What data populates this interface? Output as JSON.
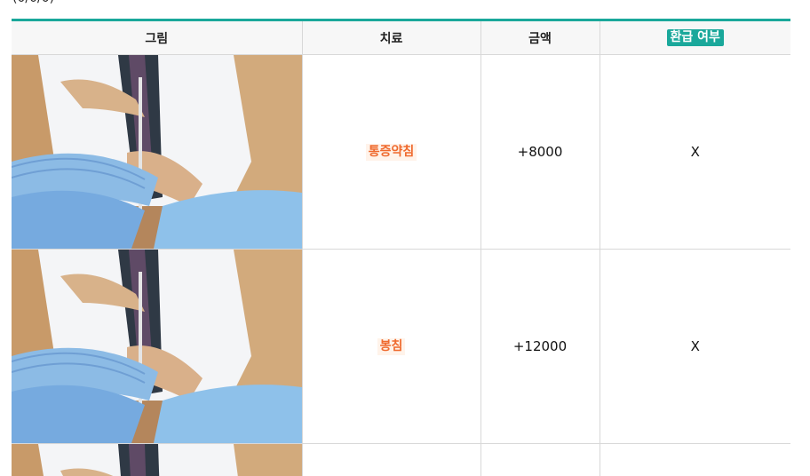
{
  "caption": "(0/0/0)",
  "table": {
    "headers": {
      "image": "그림",
      "treatment": "치료",
      "amount": "금액",
      "refund": "환급 여부"
    },
    "rows": [
      {
        "treatment": "통증약침",
        "amount": "+8000",
        "refund": "X"
      },
      {
        "treatment": "봉침",
        "amount": "+12000",
        "refund": "X"
      }
    ]
  },
  "colors": {
    "accent": "#1aa89b",
    "treatment_text": "#ef6a2e",
    "treatment_bg": "#fff3ea",
    "header_bg": "#f7f7f7",
    "border": "#d8d8d8"
  }
}
